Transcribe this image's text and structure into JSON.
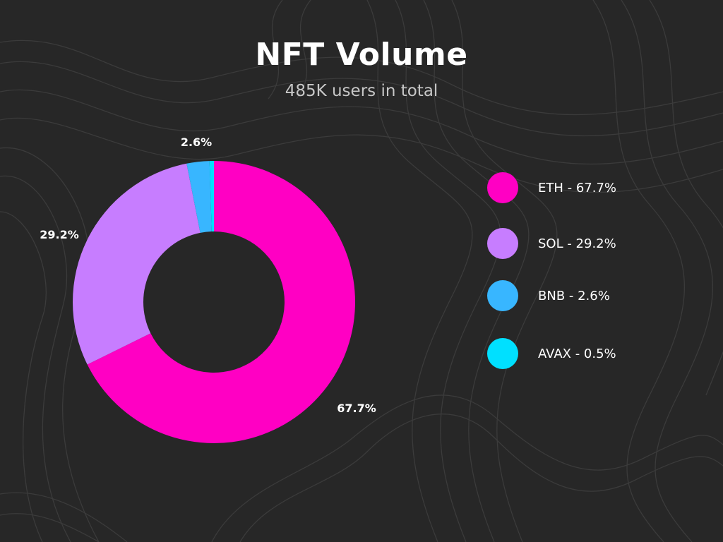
{
  "header": {
    "title": "NFT Volume",
    "subtitle": "485K users in total"
  },
  "chart_data": {
    "type": "pie",
    "donut": true,
    "categories": [
      "ETH",
      "SOL",
      "BNB",
      "AVAX"
    ],
    "values": [
      67.7,
      29.2,
      2.6,
      0.5
    ],
    "data_labels": [
      "67.7%",
      "29.2%",
      "2.6%",
      ""
    ],
    "colors": [
      "#ff00c3",
      "#c77dff",
      "#38b6ff",
      "#00e0ff"
    ],
    "legend_entries": [
      "ETH - 67.7%",
      "SOL - 29.2%",
      "BNB - 2.6%",
      "AVAX - 0.5%"
    ],
    "legend_position": "right",
    "title": "NFT Volume",
    "subtitle": "485K users in total"
  }
}
